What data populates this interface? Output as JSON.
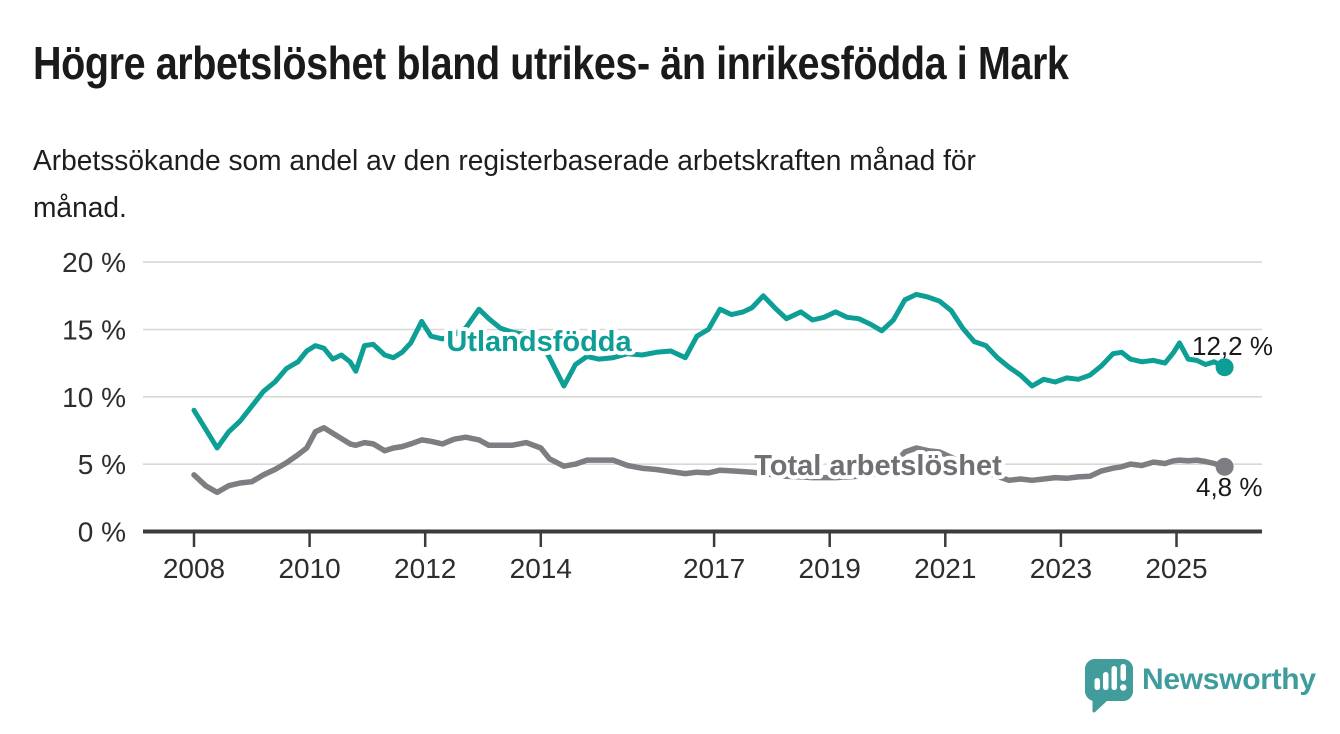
{
  "header": {
    "title": "Högre arbetslöshet bland utrikes- än inrikesfödda i Mark",
    "subtitle_line1": "Arbetssökande som andel av den registerbaserade arbetskraften månad för",
    "subtitle_line2": "månad."
  },
  "chart_data": {
    "type": "line",
    "title": "Högre arbetslöshet bland utrikes- än inrikesfödda i Mark",
    "subtitle": "Arbetssökande som andel av den registerbaserade arbetskraften månad för månad.",
    "grid": "horizontal",
    "x_unit": "year (decimal, monthly data)",
    "y_unit": "%",
    "x": [
      2008.0,
      2008.2,
      2008.4,
      2008.6,
      2008.8,
      2009.0,
      2009.2,
      2009.4,
      2009.6,
      2009.8,
      2009.95,
      2010.1,
      2010.25,
      2010.4,
      2010.55,
      2010.7,
      2010.8,
      2010.95,
      2011.1,
      2011.3,
      2011.45,
      2011.6,
      2011.75,
      2011.94,
      2012.1,
      2012.3,
      2012.5,
      2012.7,
      2012.93,
      2013.1,
      2013.3,
      2013.5,
      2013.75,
      2014.0,
      2014.15,
      2014.4,
      2014.6,
      2014.8,
      2015.0,
      2015.25,
      2015.5,
      2015.75,
      2016.0,
      2016.25,
      2016.5,
      2016.7,
      2016.9,
      2017.1,
      2017.3,
      2017.5,
      2017.65,
      2017.85,
      2018.05,
      2018.25,
      2018.5,
      2018.7,
      2018.9,
      2019.1,
      2019.3,
      2019.5,
      2019.7,
      2019.9,
      2020.1,
      2020.3,
      2020.5,
      2020.7,
      2020.9,
      2021.1,
      2021.3,
      2021.5,
      2021.7,
      2021.9,
      2022.1,
      2022.3,
      2022.5,
      2022.7,
      2022.9,
      2023.1,
      2023.3,
      2023.5,
      2023.7,
      2023.9,
      2024.05,
      2024.2,
      2024.4,
      2024.6,
      2024.8,
      2024.95,
      2025.05,
      2025.2,
      2025.35,
      2025.5,
      2025.65,
      2025.83
    ],
    "series": [
      {
        "name": "Utlandsfödda",
        "color": "#0d9e95",
        "end_label": "12,2 %",
        "end_value": 12.2,
        "values": [
          9.0,
          7.6,
          6.2,
          7.4,
          8.2,
          9.3,
          10.4,
          11.1,
          12.1,
          12.6,
          13.4,
          13.8,
          13.6,
          12.8,
          13.1,
          12.6,
          11.9,
          13.8,
          13.9,
          13.1,
          12.9,
          13.3,
          14.0,
          15.6,
          14.5,
          14.3,
          14.6,
          15.1,
          16.5,
          15.8,
          15.1,
          14.8,
          14.6,
          14.0,
          12.9,
          10.8,
          12.4,
          13.0,
          12.8,
          12.9,
          13.2,
          13.1,
          13.3,
          13.4,
          12.9,
          14.5,
          15.0,
          16.5,
          16.1,
          16.3,
          16.6,
          17.5,
          16.6,
          15.8,
          16.3,
          15.7,
          15.9,
          16.3,
          15.9,
          15.8,
          15.4,
          14.9,
          15.7,
          17.2,
          17.6,
          17.4,
          17.1,
          16.4,
          15.1,
          14.1,
          13.8,
          12.9,
          12.2,
          11.6,
          10.8,
          11.3,
          11.1,
          11.4,
          11.3,
          11.6,
          12.3,
          13.2,
          13.3,
          12.8,
          12.6,
          12.7,
          12.5,
          13.3,
          14.0,
          12.8,
          12.7,
          12.4,
          12.6,
          12.2
        ]
      },
      {
        "name": "Total arbetslöshet",
        "color": "#7d7d82",
        "end_label": "4,8 %",
        "end_value": 4.8,
        "values": [
          4.2,
          3.4,
          2.9,
          3.4,
          3.6,
          3.7,
          4.2,
          4.6,
          5.1,
          5.7,
          6.2,
          7.4,
          7.7,
          7.3,
          6.9,
          6.5,
          6.4,
          6.6,
          6.5,
          6.0,
          6.2,
          6.3,
          6.5,
          6.8,
          6.7,
          6.5,
          6.85,
          7.0,
          6.8,
          6.4,
          6.4,
          6.4,
          6.6,
          6.2,
          5.4,
          4.85,
          5.0,
          5.3,
          5.3,
          5.3,
          4.9,
          4.7,
          4.6,
          4.45,
          4.3,
          4.4,
          4.35,
          4.55,
          4.5,
          4.45,
          4.4,
          4.3,
          4.2,
          4.1,
          4.05,
          4.0,
          4.0,
          4.0,
          4.05,
          4.1,
          4.2,
          4.4,
          5.0,
          5.9,
          6.2,
          6.0,
          5.9,
          5.5,
          5.1,
          4.7,
          4.4,
          4.1,
          3.8,
          3.9,
          3.8,
          3.9,
          4.0,
          3.95,
          4.05,
          4.1,
          4.5,
          4.7,
          4.8,
          5.0,
          4.9,
          5.15,
          5.05,
          5.25,
          5.3,
          5.25,
          5.3,
          5.2,
          5.05,
          4.8
        ]
      }
    ],
    "y_axis": {
      "tick_labels": [
        "20 %",
        "15 %",
        "10 %",
        "5 %",
        "0 %"
      ],
      "tick_values": [
        20,
        15,
        10,
        5,
        0
      ],
      "range": [
        0,
        20
      ]
    },
    "x_axis": {
      "tick_labels": [
        "2008",
        "2010",
        "2012",
        "2014",
        "2017",
        "2019",
        "2021",
        "2023",
        "2025"
      ],
      "tick_years": [
        2008,
        2010,
        2012,
        2014,
        2017,
        2019,
        2021,
        2023,
        2025
      ]
    },
    "legend_position": "inline-labels-on-lines"
  },
  "branding": {
    "wordmark": "Newsworthy",
    "icon": "newsworthy-speech-bubble-bars-icon",
    "color": "#3f9c9c"
  }
}
